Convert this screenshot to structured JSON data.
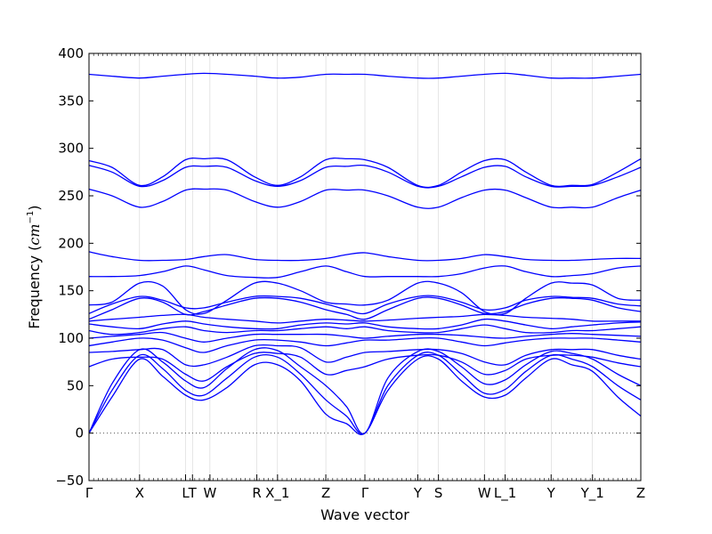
{
  "chart_data": {
    "type": "line",
    "title": "",
    "xlabel": "Wave vector",
    "ylabel_prefix": "Frequency (",
    "ylabel_unit": "cm",
    "ylabel_exponent": "−1",
    "ylabel_suffix": ")",
    "ylim": [
      -50,
      400
    ],
    "yticks": [
      -50,
      0,
      50,
      100,
      150,
      200,
      250,
      300,
      350,
      400
    ],
    "xlim": [
      0,
      12
    ],
    "high_symmetry_points": [
      {
        "label": "Γ",
        "x": 0
      },
      {
        "label": "X",
        "x": 1.1
      },
      {
        "label": "L",
        "x": 2.1
      },
      {
        "label": "T",
        "x": 2.25
      },
      {
        "label": "W",
        "x": 2.63
      },
      {
        "label": "R",
        "x": 3.65
      },
      {
        "label": "X_1",
        "x": 4.1
      },
      {
        "label": "Z",
        "x": 5.15
      },
      {
        "label": "Γ",
        "x": 6.0
      },
      {
        "label": "Y",
        "x": 7.15
      },
      {
        "label": "S",
        "x": 7.6
      },
      {
        "label": "W",
        "x": 8.6
      },
      {
        "label": "L_1",
        "x": 9.05
      },
      {
        "label": "Y",
        "x": 10.05
      },
      {
        "label": "Y_1",
        "x": 10.95
      },
      {
        "label": "Z",
        "x": 12.0
      }
    ],
    "zero_line": true,
    "line_color": "#0000ff",
    "zero_line_color": "#555555",
    "series": [
      {
        "x": [
          0,
          0.5,
          1.1,
          1.6,
          2.1,
          2.5,
          3.0,
          3.6,
          4.1,
          4.6,
          5.15,
          5.6,
          6.0,
          6.5,
          7.15,
          7.6,
          8.1,
          8.6,
          9.05,
          9.5,
          10.05,
          10.5,
          10.95,
          11.5,
          12.0
        ],
        "y": [
          0,
          38,
          78,
          60,
          40,
          35,
          48,
          72,
          72,
          55,
          20,
          10,
          0,
          45,
          78,
          78,
          55,
          38,
          40,
          58,
          78,
          72,
          65,
          38,
          18
        ]
      },
      {
        "x": [
          0,
          0.5,
          1.1,
          1.6,
          2.1,
          2.5,
          3.0,
          3.6,
          4.1,
          4.6,
          5.15,
          5.6,
          6.0,
          6.5,
          7.15,
          7.6,
          8.1,
          8.6,
          9.05,
          9.5,
          10.05,
          10.5,
          10.95,
          11.5,
          12.0
        ],
        "y": [
          0,
          45,
          82,
          68,
          45,
          40,
          58,
          80,
          80,
          62,
          35,
          18,
          0,
          50,
          82,
          82,
          62,
          42,
          46,
          65,
          82,
          78,
          70,
          50,
          35
        ]
      },
      {
        "x": [
          0,
          0.5,
          1.1,
          1.6,
          2.1,
          2.5,
          3.0,
          3.6,
          4.1,
          4.6,
          5.15,
          5.6,
          6.0,
          6.5,
          7.15,
          7.6,
          8.1,
          8.6,
          9.05,
          9.5,
          10.05,
          10.5,
          10.95,
          11.5,
          12.0
        ],
        "y": [
          0,
          52,
          88,
          75,
          55,
          48,
          68,
          88,
          87,
          70,
          50,
          28,
          0,
          58,
          86,
          86,
          70,
          52,
          56,
          72,
          86,
          84,
          78,
          62,
          50
        ]
      },
      {
        "x": [
          0,
          0.5,
          1.1,
          1.6,
          2.1,
          2.5,
          3.0,
          3.6,
          4.1,
          4.6,
          5.15,
          5.6,
          6.0,
          6.5,
          7.15,
          7.6,
          8.1,
          8.6,
          9.05,
          9.5,
          10.05,
          10.5,
          10.95,
          11.5,
          12.0
        ],
        "y": [
          70,
          78,
          80,
          78,
          62,
          55,
          70,
          84,
          84,
          80,
          62,
          66,
          70,
          78,
          82,
          82,
          75,
          62,
          66,
          78,
          82,
          82,
          80,
          74,
          70
        ]
      },
      {
        "x": [
          0,
          0.5,
          1.1,
          1.6,
          2.1,
          2.5,
          3.0,
          3.6,
          4.1,
          4.6,
          5.15,
          5.6,
          6.0,
          6.5,
          7.15,
          7.6,
          8.1,
          8.6,
          9.05,
          9.5,
          10.05,
          10.5,
          10.95,
          11.5,
          12.0
        ],
        "y": [
          85,
          86,
          88,
          88,
          72,
          72,
          80,
          92,
          92,
          90,
          75,
          80,
          85,
          86,
          88,
          88,
          84,
          75,
          72,
          82,
          88,
          88,
          88,
          82,
          78
        ]
      },
      {
        "x": [
          0,
          0.5,
          1.1,
          1.6,
          2.1,
          2.5,
          3.0,
          3.6,
          4.1,
          4.6,
          5.15,
          5.6,
          6.0,
          6.5,
          7.15,
          7.6,
          8.1,
          8.6,
          9.05,
          9.5,
          10.05,
          10.5,
          10.95,
          11.5,
          12.0
        ],
        "y": [
          92,
          96,
          100,
          98,
          90,
          85,
          92,
          98,
          98,
          96,
          92,
          95,
          98,
          98,
          100,
          100,
          96,
          92,
          95,
          98,
          100,
          100,
          100,
          98,
          96
        ]
      },
      {
        "x": [
          0,
          0.5,
          1.1,
          1.6,
          2.1,
          2.5,
          3.0,
          3.6,
          4.1,
          4.6,
          5.15,
          5.6,
          6.0,
          6.5,
          7.15,
          7.6,
          8.1,
          8.6,
          9.05,
          9.5,
          10.05,
          10.5,
          10.95,
          11.5,
          12.0
        ],
        "y": [
          100,
          102,
          104,
          106,
          100,
          96,
          100,
          104,
          104,
          104,
          104,
          102,
          100,
          102,
          104,
          104,
          103,
          101,
          100,
          102,
          104,
          105,
          104,
          103,
          102
        ]
      },
      {
        "x": [
          0,
          0.5,
          1.1,
          1.6,
          2.1,
          2.5,
          3.0,
          3.6,
          4.1,
          4.6,
          5.15,
          5.6,
          6.0,
          6.5,
          7.15,
          7.6,
          8.1,
          8.6,
          9.05,
          9.5,
          10.05,
          10.5,
          10.95,
          11.5,
          12.0
        ],
        "y": [
          108,
          104,
          106,
          110,
          112,
          108,
          106,
          108,
          108,
          110,
          112,
          110,
          112,
          108,
          106,
          106,
          110,
          114,
          110,
          106,
          106,
          108,
          108,
          110,
          112
        ]
      },
      {
        "x": [
          0,
          0.5,
          1.1,
          1.6,
          2.1,
          2.5,
          3.0,
          3.6,
          4.1,
          4.6,
          5.15,
          5.6,
          6.0,
          6.5,
          7.15,
          7.6,
          8.1,
          8.6,
          9.05,
          9.5,
          10.05,
          10.5,
          10.95,
          11.5,
          12.0
        ],
        "y": [
          115,
          112,
          110,
          115,
          118,
          115,
          112,
          110,
          110,
          114,
          116,
          115,
          116,
          112,
          110,
          110,
          114,
          120,
          118,
          114,
          110,
          112,
          114,
          116,
          117
        ]
      },
      {
        "x": [
          0,
          0.5,
          1.1,
          1.6,
          2.1,
          2.5,
          3.0,
          3.6,
          4.1,
          4.6,
          5.15,
          5.6,
          6.0,
          6.5,
          7.15,
          7.6,
          8.1,
          8.6,
          9.05,
          9.5,
          10.05,
          10.5,
          10.95,
          11.5,
          12.0
        ],
        "y": [
          118,
          120,
          122,
          124,
          125,
          122,
          120,
          118,
          116,
          118,
          120,
          119,
          118,
          119,
          121,
          122,
          123,
          125,
          124,
          122,
          121,
          120,
          118,
          118,
          118
        ]
      },
      {
        "x": [
          0,
          0.5,
          1.1,
          1.6,
          2.1,
          2.5,
          3.0,
          3.6,
          4.1,
          4.6,
          5.15,
          5.6,
          6.0,
          6.5,
          7.15,
          7.6,
          8.1,
          8.6,
          9.05,
          9.5,
          10.05,
          10.5,
          10.95,
          11.5,
          12.0
        ],
        "y": [
          120,
          130,
          142,
          138,
          125,
          128,
          135,
          142,
          142,
          138,
          130,
          125,
          120,
          130,
          142,
          142,
          135,
          126,
          128,
          136,
          142,
          142,
          140,
          132,
          128
        ]
      },
      {
        "x": [
          0,
          0.5,
          1.1,
          1.6,
          2.1,
          2.5,
          3.0,
          3.6,
          4.1,
          4.6,
          5.15,
          5.6,
          6.0,
          6.5,
          7.15,
          7.6,
          8.1,
          8.6,
          9.05,
          9.5,
          10.05,
          10.5,
          10.95,
          11.5,
          12.0
        ],
        "y": [
          126,
          136,
          144,
          140,
          132,
          132,
          138,
          144,
          144,
          142,
          136,
          130,
          126,
          136,
          144,
          144,
          138,
          130,
          132,
          140,
          144,
          143,
          142,
          136,
          134
        ]
      },
      {
        "x": [
          0,
          0.5,
          1.1,
          1.6,
          2.1,
          2.5,
          3.0,
          3.6,
          4.1,
          4.6,
          5.15,
          5.6,
          6.0,
          6.5,
          7.15,
          7.6,
          8.1,
          8.6,
          9.05,
          9.5,
          10.05,
          10.5,
          10.95,
          11.5,
          12.0
        ],
        "y": [
          135,
          138,
          158,
          155,
          130,
          126,
          140,
          158,
          158,
          150,
          138,
          136,
          135,
          140,
          158,
          158,
          148,
          128,
          126,
          142,
          158,
          158,
          156,
          142,
          140
        ]
      },
      {
        "x": [
          0,
          0.5,
          1.1,
          1.6,
          2.1,
          2.5,
          3.0,
          3.6,
          4.1,
          4.6,
          5.15,
          5.6,
          6.0,
          6.5,
          7.15,
          7.6,
          8.1,
          8.6,
          9.05,
          9.5,
          10.05,
          10.5,
          10.95,
          11.5,
          12.0
        ],
        "y": [
          165,
          165,
          166,
          170,
          176,
          172,
          166,
          164,
          164,
          170,
          176,
          170,
          165,
          165,
          165,
          165,
          168,
          174,
          176,
          170,
          165,
          166,
          168,
          174,
          176
        ]
      },
      {
        "x": [
          0,
          0.5,
          1.1,
          1.6,
          2.1,
          2.5,
          3.0,
          3.6,
          4.1,
          4.6,
          5.15,
          5.6,
          6.0,
          6.5,
          7.15,
          7.6,
          8.1,
          8.6,
          9.05,
          9.5,
          10.05,
          10.5,
          10.95,
          11.5,
          12.0
        ],
        "y": [
          191,
          186,
          182,
          182,
          183,
          186,
          188,
          183,
          182,
          182,
          184,
          188,
          190,
          186,
          182,
          182,
          184,
          188,
          186,
          183,
          182,
          182,
          183,
          184,
          184
        ]
      },
      {
        "x": [
          0,
          0.5,
          1.1,
          1.6,
          2.1,
          2.5,
          3.0,
          3.6,
          4.1,
          4.6,
          5.15,
          5.6,
          6.0,
          6.5,
          7.15,
          7.6,
          8.1,
          8.6,
          9.05,
          9.5,
          10.05,
          10.5,
          10.95,
          11.5,
          12.0
        ],
        "y": [
          257,
          250,
          238,
          244,
          256,
          257,
          256,
          244,
          238,
          244,
          256,
          256,
          256,
          250,
          238,
          238,
          248,
          256,
          256,
          248,
          238,
          238,
          238,
          248,
          256
        ]
      },
      {
        "x": [
          0,
          0.5,
          1.1,
          1.6,
          2.1,
          2.5,
          3.0,
          3.6,
          4.1,
          4.6,
          5.15,
          5.6,
          6.0,
          6.5,
          7.15,
          7.6,
          8.1,
          8.6,
          9.05,
          9.5,
          10.05,
          10.5,
          10.95,
          11.5,
          12.0
        ],
        "y": [
          282,
          275,
          260,
          266,
          280,
          281,
          280,
          266,
          260,
          266,
          280,
          281,
          282,
          275,
          260,
          260,
          270,
          280,
          281,
          270,
          260,
          260,
          261,
          270,
          280
        ]
      },
      {
        "x": [
          0,
          0.5,
          1.1,
          1.6,
          2.1,
          2.5,
          3.0,
          3.6,
          4.1,
          4.6,
          5.15,
          5.6,
          6.0,
          6.5,
          7.15,
          7.6,
          8.1,
          8.6,
          9.05,
          9.5,
          10.05,
          10.5,
          10.95,
          11.5,
          12.0
        ],
        "y": [
          287,
          280,
          261,
          270,
          288,
          289,
          288,
          270,
          261,
          270,
          288,
          289,
          288,
          280,
          261,
          261,
          275,
          287,
          288,
          275,
          261,
          261,
          262,
          275,
          289
        ]
      },
      {
        "x": [
          0,
          0.5,
          1.1,
          1.6,
          2.1,
          2.5,
          3.0,
          3.6,
          4.1,
          4.6,
          5.15,
          5.6,
          6.0,
          6.5,
          7.15,
          7.6,
          8.1,
          8.6,
          9.05,
          9.5,
          10.05,
          10.5,
          10.95,
          11.5,
          12.0
        ],
        "y": [
          378,
          376,
          374,
          376,
          378,
          379,
          378,
          376,
          374,
          375,
          378,
          378,
          378,
          376,
          374,
          374,
          376,
          378,
          379,
          377,
          374,
          374,
          374,
          376,
          378
        ]
      }
    ]
  }
}
